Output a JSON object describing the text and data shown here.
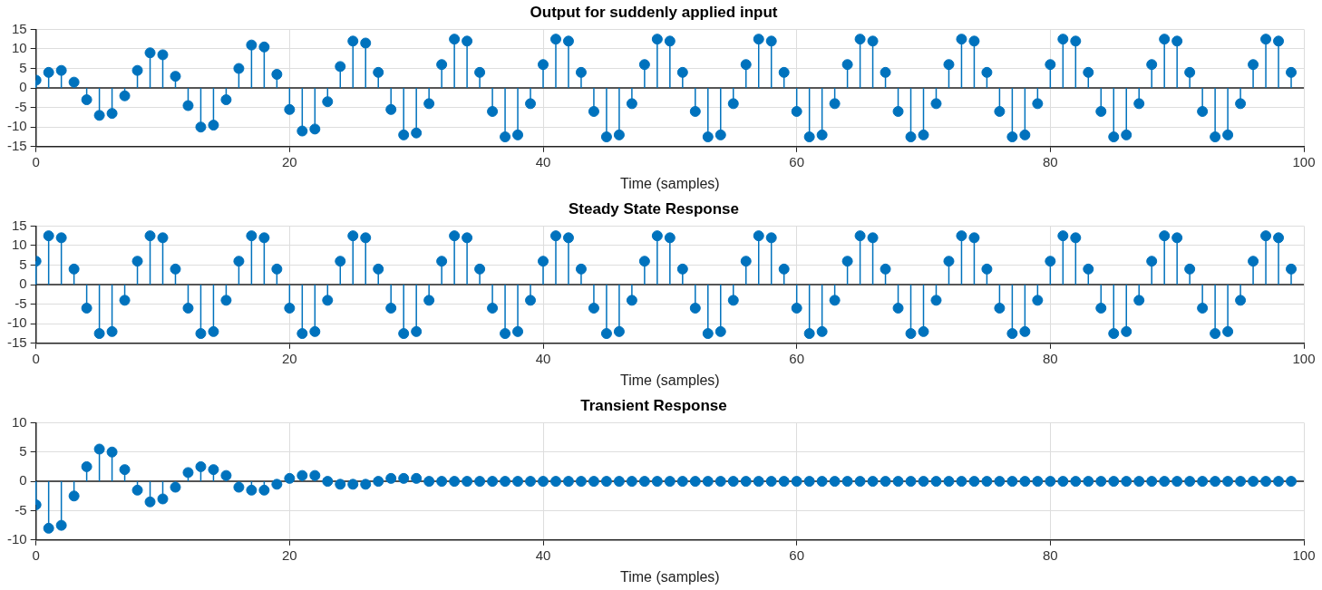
{
  "chart_data": [
    {
      "type": "lollipop",
      "title": "Output for suddenly applied input",
      "xlabel": "Time (samples)",
      "color": "#0072bd",
      "marker": "circle",
      "grid": true,
      "xlim": [
        0,
        100
      ],
      "xticks": [
        0,
        20,
        40,
        60,
        80,
        100
      ],
      "ylim": [
        -15,
        15
      ],
      "yticks": [
        -15,
        -10,
        -5,
        0,
        5,
        10,
        15
      ],
      "x": [
        0,
        1,
        2,
        3,
        4,
        5,
        6,
        7,
        8,
        9,
        10,
        11,
        12,
        13,
        14,
        15,
        16,
        17,
        18,
        19,
        20,
        21,
        22,
        23,
        24,
        25,
        26,
        27,
        28,
        29,
        30,
        31,
        32,
        33,
        34,
        35,
        36,
        37,
        38,
        39,
        40,
        41,
        42,
        43,
        44,
        45,
        46,
        47,
        48,
        49,
        50,
        51,
        52,
        53,
        54,
        55,
        56,
        57,
        58,
        59,
        60,
        61,
        62,
        63,
        64,
        65,
        66,
        67,
        68,
        69,
        70,
        71,
        72,
        73,
        74,
        75,
        76,
        77,
        78,
        79,
        80,
        81,
        82,
        83,
        84,
        85,
        86,
        87,
        88,
        89,
        90,
        91,
        92,
        93,
        94,
        95,
        96,
        97,
        98,
        99
      ],
      "values": [
        2,
        4,
        4.5,
        1.5,
        -3,
        -7,
        -6.5,
        -2,
        4.5,
        9,
        8.5,
        3,
        -4.5,
        -10,
        -9.5,
        -3,
        5,
        11,
        10.5,
        3.5,
        -5.5,
        -11,
        -10.5,
        -3.5,
        5.5,
        12,
        11.5,
        4,
        -5.5,
        -12,
        -11.5,
        -4,
        6,
        12.5,
        12,
        4,
        -6,
        -12.5,
        -12,
        -4,
        6,
        12.5,
        12,
        4,
        -6,
        -12.5,
        -12,
        -4,
        6,
        12.5,
        12,
        4,
        -6,
        -12.5,
        -12,
        -4,
        6,
        12.5,
        12,
        4,
        -6,
        -12.5,
        -12,
        -4,
        6,
        12.5,
        12,
        4,
        -6,
        -12.5,
        -12,
        -4,
        6,
        12.5,
        12,
        4,
        -6,
        -12.5,
        -12,
        -4,
        6,
        12.5,
        12,
        4,
        -6,
        -12.5,
        -12,
        -4,
        6,
        12.5,
        12,
        4,
        -6,
        -12.5,
        -12,
        -4,
        6,
        12.5,
        12,
        4
      ]
    },
    {
      "type": "lollipop",
      "title": "Steady State Response",
      "xlabel": "Time (samples)",
      "color": "#0072bd",
      "marker": "circle",
      "grid": true,
      "xlim": [
        0,
        100
      ],
      "xticks": [
        0,
        20,
        40,
        60,
        80,
        100
      ],
      "ylim": [
        -15,
        15
      ],
      "yticks": [
        -15,
        -10,
        -5,
        0,
        5,
        10,
        15
      ],
      "x": [
        0,
        1,
        2,
        3,
        4,
        5,
        6,
        7,
        8,
        9,
        10,
        11,
        12,
        13,
        14,
        15,
        16,
        17,
        18,
        19,
        20,
        21,
        22,
        23,
        24,
        25,
        26,
        27,
        28,
        29,
        30,
        31,
        32,
        33,
        34,
        35,
        36,
        37,
        38,
        39,
        40,
        41,
        42,
        43,
        44,
        45,
        46,
        47,
        48,
        49,
        50,
        51,
        52,
        53,
        54,
        55,
        56,
        57,
        58,
        59,
        60,
        61,
        62,
        63,
        64,
        65,
        66,
        67,
        68,
        69,
        70,
        71,
        72,
        73,
        74,
        75,
        76,
        77,
        78,
        79,
        80,
        81,
        82,
        83,
        84,
        85,
        86,
        87,
        88,
        89,
        90,
        91,
        92,
        93,
        94,
        95,
        96,
        97,
        98,
        99
      ],
      "values": [
        6,
        12.5,
        12,
        4,
        -6,
        -12.5,
        -12,
        -4,
        6,
        12.5,
        12,
        4,
        -6,
        -12.5,
        -12,
        -4,
        6,
        12.5,
        12,
        4,
        -6,
        -12.5,
        -12,
        -4,
        6,
        12.5,
        12,
        4,
        -6,
        -12.5,
        -12,
        -4,
        6,
        12.5,
        12,
        4,
        -6,
        -12.5,
        -12,
        -4,
        6,
        12.5,
        12,
        4,
        -6,
        -12.5,
        -12,
        -4,
        6,
        12.5,
        12,
        4,
        -6,
        -12.5,
        -12,
        -4,
        6,
        12.5,
        12,
        4,
        -6,
        -12.5,
        -12,
        -4,
        6,
        12.5,
        12,
        4,
        -6,
        -12.5,
        -12,
        -4,
        6,
        12.5,
        12,
        4,
        -6,
        -12.5,
        -12,
        -4,
        6,
        12.5,
        12,
        4,
        -6,
        -12.5,
        -12,
        -4,
        6,
        12.5,
        12,
        4,
        -6,
        -12.5,
        -12,
        -4,
        6,
        12.5,
        12,
        4
      ]
    },
    {
      "type": "lollipop",
      "title": "Transient Response",
      "xlabel": "Time (samples)",
      "color": "#0072bd",
      "marker": "circle",
      "grid": true,
      "xlim": [
        0,
        100
      ],
      "xticks": [
        0,
        20,
        40,
        60,
        80,
        100
      ],
      "ylim": [
        -10,
        10
      ],
      "yticks": [
        -10,
        -5,
        0,
        5,
        10
      ],
      "x": [
        0,
        1,
        2,
        3,
        4,
        5,
        6,
        7,
        8,
        9,
        10,
        11,
        12,
        13,
        14,
        15,
        16,
        17,
        18,
        19,
        20,
        21,
        22,
        23,
        24,
        25,
        26,
        27,
        28,
        29,
        30,
        31,
        32,
        33,
        34,
        35,
        36,
        37,
        38,
        39,
        40,
        41,
        42,
        43,
        44,
        45,
        46,
        47,
        48,
        49,
        50,
        51,
        52,
        53,
        54,
        55,
        56,
        57,
        58,
        59,
        60,
        61,
        62,
        63,
        64,
        65,
        66,
        67,
        68,
        69,
        70,
        71,
        72,
        73,
        74,
        75,
        76,
        77,
        78,
        79,
        80,
        81,
        82,
        83,
        84,
        85,
        86,
        87,
        88,
        89,
        90,
        91,
        92,
        93,
        94,
        95,
        96,
        97,
        98,
        99
      ],
      "values": [
        -4,
        -8,
        -7.5,
        -2.5,
        2.5,
        5.5,
        5,
        2,
        -1.5,
        -3.5,
        -3,
        -1,
        1.5,
        2.5,
        2,
        1,
        -1,
        -1.5,
        -1.5,
        -0.5,
        0.5,
        1,
        1,
        0,
        -0.5,
        -0.5,
        -0.5,
        0,
        0.5,
        0.5,
        0.5,
        0,
        0,
        0,
        0,
        0,
        0,
        0,
        0,
        0,
        0,
        0,
        0,
        0,
        0,
        0,
        0,
        0,
        0,
        0,
        0,
        0,
        0,
        0,
        0,
        0,
        0,
        0,
        0,
        0,
        0,
        0,
        0,
        0,
        0,
        0,
        0,
        0,
        0,
        0,
        0,
        0,
        0,
        0,
        0,
        0,
        0,
        0,
        0,
        0,
        0,
        0,
        0,
        0,
        0,
        0,
        0,
        0,
        0,
        0,
        0,
        0,
        0,
        0,
        0,
        0,
        0,
        0,
        0,
        0
      ]
    }
  ]
}
